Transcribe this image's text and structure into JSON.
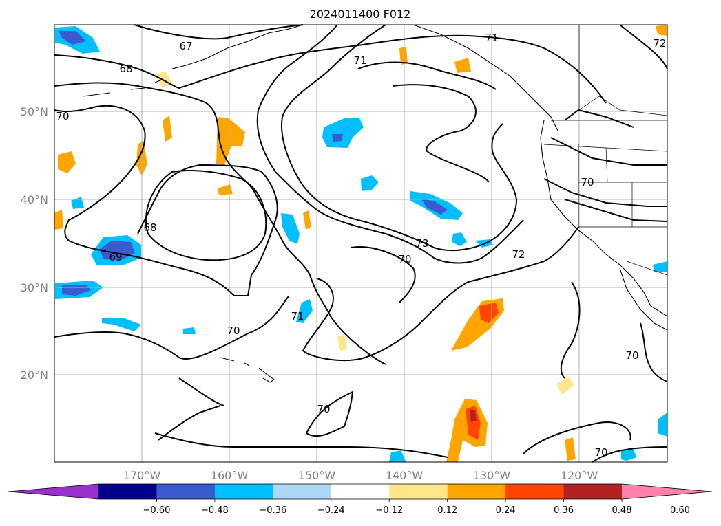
{
  "title": "2024011400 F012",
  "map": {
    "lat_labels": [
      "50°N",
      "40°N",
      "30°N",
      "20°N"
    ],
    "lon_labels": [
      "170°W",
      "160°W",
      "150°W",
      "140°W",
      "130°W",
      "120°W"
    ],
    "contour_labels": [
      "67",
      "68",
      "70",
      "71",
      "71",
      "70",
      "68",
      "69",
      "73",
      "70",
      "72",
      "70",
      "71",
      "70",
      "70",
      "70",
      "72"
    ]
  },
  "colorbar": {
    "ticks": [
      "−0.60",
      "−0.48",
      "−0.36",
      "−0.24",
      "−0.12",
      "0.12",
      "0.24",
      "0.36",
      "0.48",
      "0.60"
    ],
    "colors": [
      "#9932cc",
      "#00008b",
      "#3a5bd0",
      "#00bfff",
      "#add8f5",
      "#ffffff",
      "#ffe68a",
      "#ffa500",
      "#ff4500",
      "#b22222",
      "#ff82ab"
    ]
  }
}
